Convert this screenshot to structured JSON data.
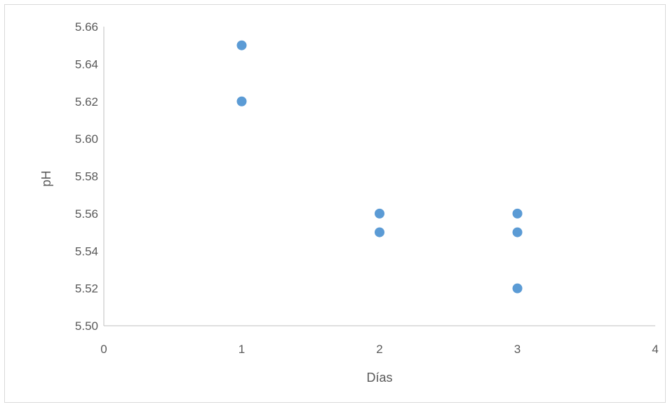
{
  "chart_data": {
    "type": "scatter",
    "title": "",
    "xlabel": "Días",
    "ylabel": "pH",
    "xlim": [
      0,
      4
    ],
    "ylim": [
      5.5,
      5.66
    ],
    "x_ticks": [
      "0",
      "1",
      "2",
      "3",
      "4"
    ],
    "y_ticks": [
      "5.50",
      "5.52",
      "5.54",
      "5.56",
      "5.58",
      "5.60",
      "5.62",
      "5.64",
      "5.66"
    ],
    "grid": false,
    "legend": "none",
    "marker_color": "#5B9BD5",
    "axis_color": "#BFBFBF",
    "series": [
      {
        "points": [
          {
            "x": 1,
            "y": 5.65
          },
          {
            "x": 1,
            "y": 5.62
          },
          {
            "x": 2,
            "y": 5.56
          },
          {
            "x": 2,
            "y": 5.55
          },
          {
            "x": 3,
            "y": 5.56
          },
          {
            "x": 3,
            "y": 5.55
          },
          {
            "x": 3,
            "y": 5.52
          }
        ]
      }
    ]
  }
}
